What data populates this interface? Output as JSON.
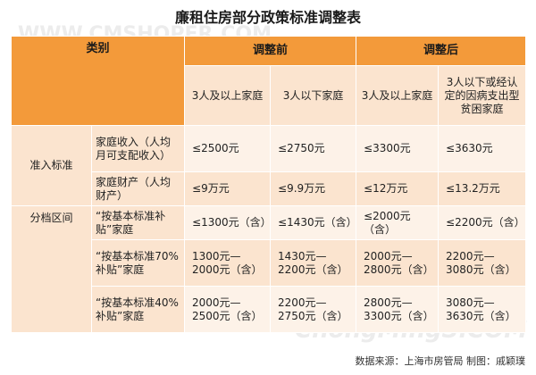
{
  "title": "廉租住房部分政策标准调整表",
  "header": {
    "category": "类别",
    "before": "调整前",
    "after": "调整后",
    "before_cols": [
      "3人及以上家庭",
      "3人以下家庭"
    ],
    "after_cols": [
      "3人及以上家庭",
      "3人以下或经认定的因病支出型贫困家庭"
    ]
  },
  "rows": [
    {
      "cat": "准入标准",
      "sub": "家庭收入（人均月可支配收入）",
      "vals": [
        "≤2500元",
        "≤2750元",
        "≤3300元",
        "≤3630元"
      ]
    },
    {
      "cat": "",
      "sub": "家庭财产（人均财产）",
      "vals": [
        "≤9万元",
        "≤9.9万元",
        "≤12万元",
        "≤13.2万元"
      ]
    },
    {
      "cat": "分档区间",
      "sub": "“按基本标准补贴”家庭",
      "vals": [
        "≤1300元（含）",
        "≤1430元（含）",
        "≤2000元（含）",
        "≤2200元（含）"
      ]
    },
    {
      "cat": "",
      "sub": "“按基本标准70%补贴”家庭",
      "vals": [
        "1300元—2000元（含）",
        "1430元—2200元（含）",
        "2000元—2800元（含）",
        "2200元—3080元（含）"
      ]
    },
    {
      "cat": "",
      "sub": "“按基本标准40%补贴”家庭",
      "vals": [
        "2000元—2500元（含）",
        "2200元—2750元（含）",
        "2800元—3300元（含）",
        "3080元—3630元（含）"
      ]
    }
  ],
  "footer": "数据来源：上海市房管局  制图：戚颖璞",
  "watermarks": [
    "WWW.CMSHOPER.COM",
    "ChongMingS.COM",
    "www.cmshoper.com"
  ]
}
